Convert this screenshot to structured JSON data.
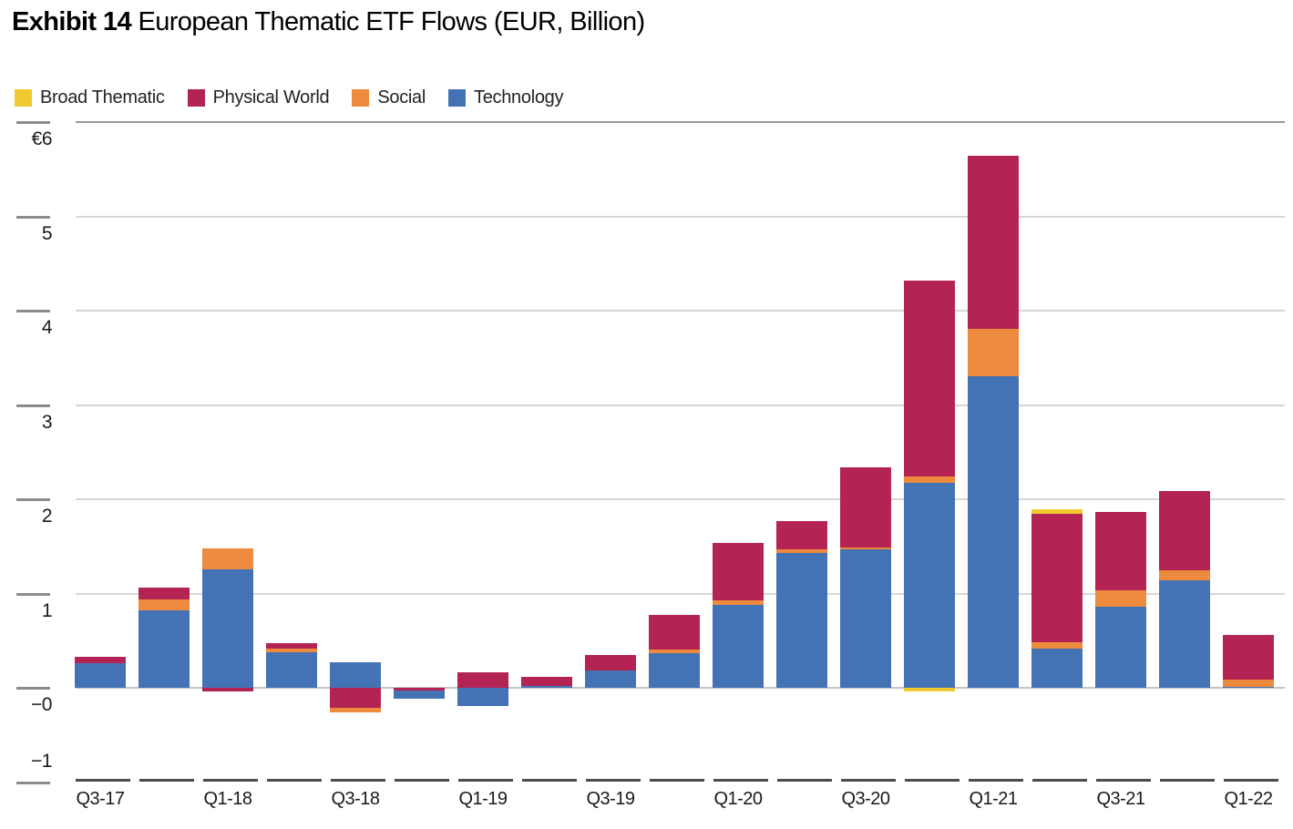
{
  "header": {
    "exhibit": "Exhibit 14",
    "title": "European Thematic ETF Flows (EUR, Billion)"
  },
  "chart_data": {
    "type": "bar",
    "stacked": true,
    "title": "Exhibit 14 European Thematic ETF Flows (EUR, Billion)",
    "unit": "EUR, Billion",
    "legend_position": "top-left",
    "grid": true,
    "ylim": [
      -1,
      6
    ],
    "categories": [
      "Q3-17",
      "Q4-17",
      "Q1-18",
      "Q2-18",
      "Q3-18",
      "Q4-18",
      "Q1-19",
      "Q2-19",
      "Q3-19",
      "Q4-19",
      "Q1-20",
      "Q2-20",
      "Q3-20",
      "Q4-20",
      "Q1-21",
      "Q2-21",
      "Q3-21",
      "Q4-21",
      "Q1-22"
    ],
    "x_tick_labels": [
      "Q3-17",
      "Q1-18",
      "Q3-18",
      "Q1-19",
      "Q3-19",
      "Q1-20",
      "Q3-20",
      "Q1-21",
      "Q3-21",
      "Q1-22"
    ],
    "y_ticks": [
      {
        "value": 6,
        "label": "€6"
      },
      {
        "value": 5,
        "label": "5"
      },
      {
        "value": 4,
        "label": "4"
      },
      {
        "value": 3,
        "label": "3"
      },
      {
        "value": 2,
        "label": "2"
      },
      {
        "value": 1,
        "label": "1"
      },
      {
        "value": 0,
        "label": "−0"
      },
      {
        "value": -1,
        "label": "−1"
      }
    ],
    "series": [
      {
        "name": "Broad Thematic",
        "color": "#EFC930",
        "values": [
          0,
          0,
          0,
          0,
          0,
          0,
          0,
          0,
          0,
          0,
          0,
          0,
          0,
          -0.04,
          0,
          0.04,
          0,
          0,
          0
        ]
      },
      {
        "name": "Physical World",
        "color": "#B32455",
        "values": [
          0.07,
          0.12,
          -0.04,
          0.05,
          -0.21,
          -0.03,
          0.16,
          0.1,
          0.17,
          0.36,
          0.61,
          0.3,
          0.85,
          2.08,
          1.83,
          1.37,
          0.83,
          0.84,
          0.47
        ]
      },
      {
        "name": "Social",
        "color": "#ED8A3D",
        "values": [
          0,
          0.12,
          0.22,
          0.04,
          -0.05,
          0,
          0,
          0,
          0,
          0.04,
          0.05,
          0.04,
          0.02,
          0.07,
          0.51,
          0.06,
          0.17,
          0.11,
          0.08
        ]
      },
      {
        "name": "Technology",
        "color": "#4473B5",
        "values": [
          0.26,
          0.82,
          1.26,
          0.38,
          0.27,
          -0.09,
          -0.19,
          0.02,
          0.18,
          0.37,
          0.88,
          1.43,
          1.47,
          2.17,
          3.3,
          0.42,
          0.86,
          1.14,
          0.01
        ]
      }
    ]
  }
}
